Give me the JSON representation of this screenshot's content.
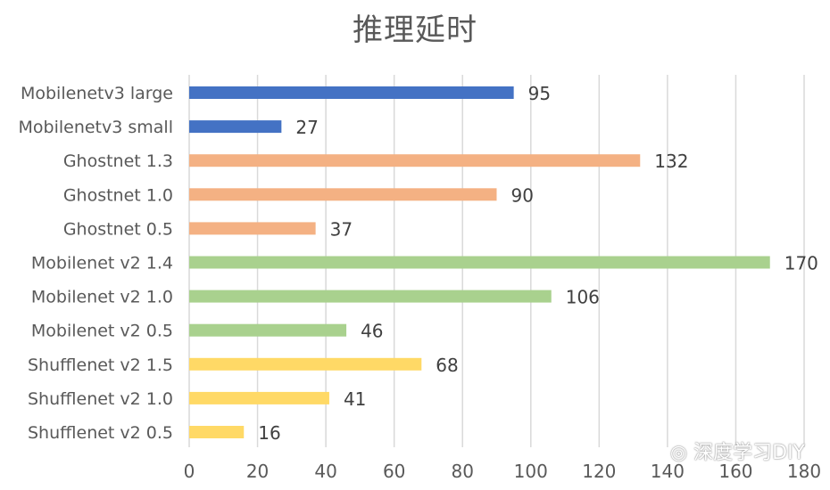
{
  "chart_data": {
    "type": "bar",
    "orientation": "horizontal",
    "title": "推理延时",
    "xlabel": "",
    "ylabel": "",
    "xlim": [
      0,
      180
    ],
    "xticks": [
      0,
      20,
      40,
      60,
      80,
      100,
      120,
      140,
      160,
      180
    ],
    "grid": true,
    "categories": [
      "Mobilenetv3 large",
      "Mobilenetv3 small",
      "Ghostnet 1.3",
      "Ghostnet 1.0",
      "Ghostnet 0.5",
      "Mobilenet v2 1.4",
      "Mobilenet v2 1.0",
      "Mobilenet v2 0.5",
      "Shufflenet v2 1.5",
      "Shufflenet v2 1.0",
      "Shufflenet v2 0.5"
    ],
    "values": [
      95,
      27,
      132,
      90,
      37,
      170,
      106,
      46,
      68,
      41,
      16
    ],
    "data_labels": [
      "95",
      "27",
      "132",
      "90",
      "37",
      "170",
      "106",
      "46",
      "68",
      "41",
      "16"
    ],
    "bar_colors": [
      "#4472C4",
      "#4472C4",
      "#F4B183",
      "#F4B183",
      "#F4B183",
      "#A9D18E",
      "#A9D18E",
      "#A9D18E",
      "#FFD966",
      "#FFD966",
      "#FFD966"
    ]
  },
  "watermark": {
    "icon": "wechat-icon",
    "text": "深度学习DIY"
  }
}
